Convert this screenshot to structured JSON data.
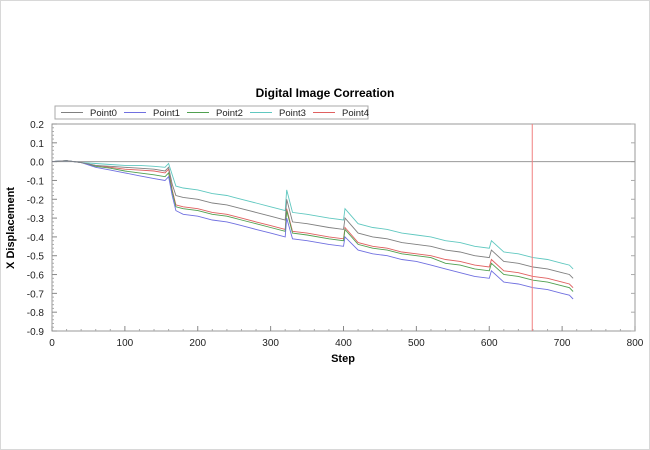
{
  "chart_data": {
    "type": "line",
    "title": "Digital Image Correation",
    "xlabel": "Step",
    "ylabel": "X Displacement",
    "xlim": [
      0,
      800
    ],
    "ylim": [
      -0.9,
      0.2
    ],
    "xticks": [
      "0",
      "100",
      "200",
      "300",
      "400",
      "500",
      "600",
      "700",
      "800"
    ],
    "yticks": [
      "0.2",
      "0.1",
      "0.0",
      "-0.1",
      "-0.2",
      "-0.3",
      "-0.4",
      "-0.5",
      "-0.6",
      "-0.7",
      "-0.8",
      "-0.9"
    ],
    "grid": false,
    "legend_position": "top",
    "zero_line": true,
    "marker_line": {
      "x": 659,
      "color": "#f08080"
    },
    "x": [
      0,
      20,
      40,
      60,
      80,
      100,
      120,
      140,
      155,
      160,
      165,
      170,
      180,
      200,
      220,
      240,
      250,
      260,
      280,
      300,
      320,
      322,
      330,
      350,
      380,
      400,
      402,
      420,
      440,
      460,
      480,
      500,
      520,
      540,
      560,
      580,
      600,
      603,
      620,
      640,
      660,
      680,
      700,
      710,
      715
    ],
    "series": [
      {
        "name": "Point0",
        "color": "#808080",
        "values": [
          0,
          0.005,
          -0.005,
          -0.02,
          -0.025,
          -0.03,
          -0.035,
          -0.04,
          -0.05,
          -0.03,
          -0.12,
          -0.18,
          -0.19,
          -0.2,
          -0.22,
          -0.23,
          -0.24,
          -0.25,
          -0.27,
          -0.29,
          -0.31,
          -0.2,
          -0.32,
          -0.33,
          -0.35,
          -0.36,
          -0.3,
          -0.38,
          -0.4,
          -0.41,
          -0.43,
          -0.44,
          -0.45,
          -0.47,
          -0.48,
          -0.5,
          -0.51,
          -0.47,
          -0.53,
          -0.54,
          -0.56,
          -0.57,
          -0.59,
          -0.6,
          -0.62
        ]
      },
      {
        "name": "Point1",
        "color": "#7070e0",
        "values": [
          0,
          0.005,
          -0.005,
          -0.03,
          -0.045,
          -0.06,
          -0.075,
          -0.09,
          -0.1,
          -0.08,
          -0.18,
          -0.26,
          -0.28,
          -0.29,
          -0.31,
          -0.32,
          -0.33,
          -0.34,
          -0.36,
          -0.38,
          -0.4,
          -0.3,
          -0.41,
          -0.42,
          -0.44,
          -0.45,
          -0.4,
          -0.47,
          -0.49,
          -0.5,
          -0.52,
          -0.53,
          -0.55,
          -0.57,
          -0.59,
          -0.61,
          -0.62,
          -0.58,
          -0.64,
          -0.65,
          -0.67,
          -0.68,
          -0.7,
          -0.71,
          -0.73
        ]
      },
      {
        "name": "Point2",
        "color": "#50a050",
        "values": [
          0,
          0.005,
          -0.005,
          -0.025,
          -0.035,
          -0.05,
          -0.06,
          -0.07,
          -0.08,
          -0.06,
          -0.16,
          -0.24,
          -0.25,
          -0.26,
          -0.28,
          -0.29,
          -0.3,
          -0.31,
          -0.33,
          -0.35,
          -0.37,
          -0.26,
          -0.38,
          -0.39,
          -0.41,
          -0.42,
          -0.36,
          -0.44,
          -0.46,
          -0.47,
          -0.49,
          -0.5,
          -0.51,
          -0.54,
          -0.55,
          -0.57,
          -0.58,
          -0.54,
          -0.6,
          -0.61,
          -0.63,
          -0.64,
          -0.66,
          -0.67,
          -0.69
        ]
      },
      {
        "name": "Point3",
        "color": "#60c8c0",
        "values": [
          0,
          0.005,
          -0.005,
          -0.01,
          -0.015,
          -0.02,
          -0.02,
          -0.025,
          -0.03,
          -0.01,
          -0.07,
          -0.13,
          -0.14,
          -0.15,
          -0.17,
          -0.18,
          -0.19,
          -0.2,
          -0.22,
          -0.24,
          -0.26,
          -0.15,
          -0.27,
          -0.28,
          -0.3,
          -0.31,
          -0.25,
          -0.33,
          -0.35,
          -0.36,
          -0.38,
          -0.39,
          -0.4,
          -0.42,
          -0.43,
          -0.45,
          -0.46,
          -0.42,
          -0.48,
          -0.49,
          -0.51,
          -0.52,
          -0.54,
          -0.55,
          -0.57
        ]
      },
      {
        "name": "Point4",
        "color": "#e06060",
        "values": [
          0,
          0.005,
          -0.005,
          -0.02,
          -0.03,
          -0.04,
          -0.045,
          -0.05,
          -0.06,
          -0.04,
          -0.15,
          -0.23,
          -0.24,
          -0.25,
          -0.27,
          -0.28,
          -0.29,
          -0.3,
          -0.32,
          -0.34,
          -0.36,
          -0.25,
          -0.37,
          -0.38,
          -0.4,
          -0.41,
          -0.35,
          -0.43,
          -0.45,
          -0.46,
          -0.48,
          -0.49,
          -0.5,
          -0.52,
          -0.53,
          -0.55,
          -0.56,
          -0.52,
          -0.58,
          -0.59,
          -0.61,
          -0.62,
          -0.64,
          -0.65,
          -0.67
        ]
      }
    ]
  }
}
